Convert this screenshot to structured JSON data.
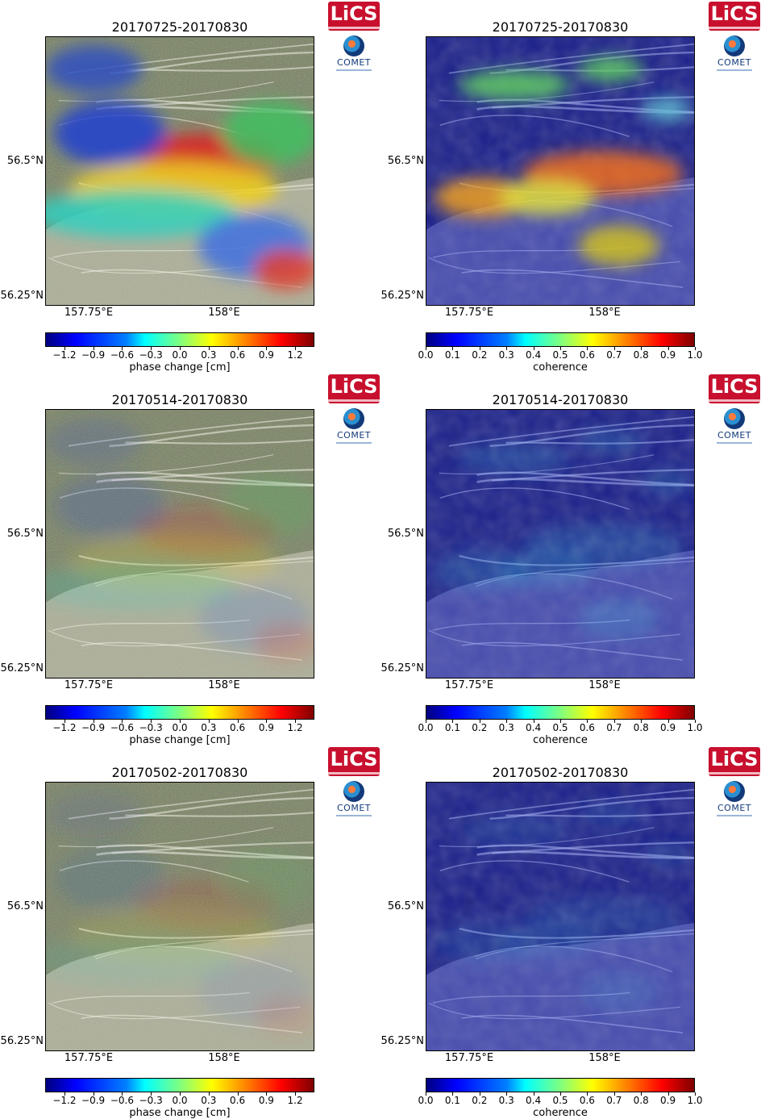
{
  "chart_data": [
    {
      "type": "heatmap",
      "variant": "phase",
      "title": "20170725-20170830",
      "ytick_labels": [
        "56.5°N",
        "56.25°N"
      ],
      "xtick_labels": [
        "157.75°E",
        "158°E"
      ],
      "colorbar": {
        "label": "phase change [cm]",
        "range": [
          -1.4,
          1.4
        ],
        "ticks": [
          "−1.2",
          "−0.9",
          "−0.6",
          "−0.3",
          "0.0",
          "0.3",
          "0.6",
          "0.9",
          "1.2"
        ],
        "tick_values": [
          -1.2,
          -0.9,
          -0.6,
          -0.3,
          0.0,
          0.3,
          0.6,
          0.9,
          1.2
        ]
      },
      "intensity": 1.0
    },
    {
      "type": "heatmap",
      "variant": "coherence",
      "title": "20170725-20170830",
      "ytick_labels": [
        "56.5°N",
        "56.25°N"
      ],
      "xtick_labels": [
        "157.75°E",
        "158°E"
      ],
      "colorbar": {
        "label": "coherence",
        "range": [
          0.0,
          1.0
        ],
        "ticks": [
          "0.0",
          "0.1",
          "0.2",
          "0.3",
          "0.4",
          "0.5",
          "0.6",
          "0.7",
          "0.8",
          "0.9",
          "1.0"
        ],
        "tick_values": [
          0.0,
          0.1,
          0.2,
          0.3,
          0.4,
          0.5,
          0.6,
          0.7,
          0.8,
          0.9,
          1.0
        ]
      },
      "intensity": 1.0
    },
    {
      "type": "heatmap",
      "variant": "phase",
      "title": "20170514-20170830",
      "ytick_labels": [
        "56.5°N",
        "56.25°N"
      ],
      "xtick_labels": [
        "157.75°E",
        "158°E"
      ],
      "colorbar": {
        "label": "phase change [cm]",
        "range": [
          -1.4,
          1.4
        ],
        "ticks": [
          "−1.2",
          "−0.9",
          "−0.6",
          "−0.3",
          "0.0",
          "0.3",
          "0.6",
          "0.9",
          "1.2"
        ],
        "tick_values": [
          -1.2,
          -0.9,
          -0.6,
          -0.3,
          0.0,
          0.3,
          0.6,
          0.9,
          1.2
        ]
      },
      "intensity": 0.25
    },
    {
      "type": "heatmap",
      "variant": "coherence",
      "title": "20170514-20170830",
      "ytick_labels": [
        "56.5°N",
        "56.25°N"
      ],
      "xtick_labels": [
        "157.75°E",
        "158°E"
      ],
      "colorbar": {
        "label": "coherence",
        "range": [
          0.0,
          1.0
        ],
        "ticks": [
          "0.0",
          "0.1",
          "0.2",
          "0.3",
          "0.4",
          "0.5",
          "0.6",
          "0.7",
          "0.8",
          "0.9",
          "1.0"
        ],
        "tick_values": [
          0.0,
          0.1,
          0.2,
          0.3,
          0.4,
          0.5,
          0.6,
          0.7,
          0.8,
          0.9,
          1.0
        ]
      },
      "intensity": 0.25
    },
    {
      "type": "heatmap",
      "variant": "phase",
      "title": "20170502-20170830",
      "ytick_labels": [
        "56.5°N",
        "56.25°N"
      ],
      "xtick_labels": [
        "157.75°E",
        "158°E"
      ],
      "colorbar": {
        "label": "phase change [cm]",
        "range": [
          -1.4,
          1.4
        ],
        "ticks": [
          "−1.2",
          "−0.9",
          "−0.6",
          "−0.3",
          "0.0",
          "0.3",
          "0.6",
          "0.9",
          "1.2"
        ],
        "tick_values": [
          -1.2,
          -0.9,
          -0.6,
          -0.3,
          0.0,
          0.3,
          0.6,
          0.9,
          1.2
        ]
      },
      "intensity": 0.15
    },
    {
      "type": "heatmap",
      "variant": "coherence",
      "title": "20170502-20170830",
      "ytick_labels": [
        "56.5°N",
        "56.25°N"
      ],
      "xtick_labels": [
        "157.75°E",
        "158°E"
      ],
      "colorbar": {
        "label": "coherence",
        "range": [
          0.0,
          1.0
        ],
        "ticks": [
          "0.0",
          "0.1",
          "0.2",
          "0.3",
          "0.4",
          "0.5",
          "0.6",
          "0.7",
          "0.8",
          "0.9",
          "1.0"
        ],
        "tick_values": [
          0.0,
          0.1,
          0.2,
          0.3,
          0.4,
          0.5,
          0.6,
          0.7,
          0.8,
          0.9,
          1.0
        ]
      },
      "intensity": 0.15
    }
  ],
  "logos": {
    "lics": "LiCS",
    "comet": "COMET"
  },
  "colors": {
    "phase_bg": "#6f7a55",
    "coherence_bg": "#1a1f8a",
    "frame": "#000000"
  },
  "icons": {
    "lics": "lics-logo-icon",
    "comet": "comet-logo-icon"
  }
}
